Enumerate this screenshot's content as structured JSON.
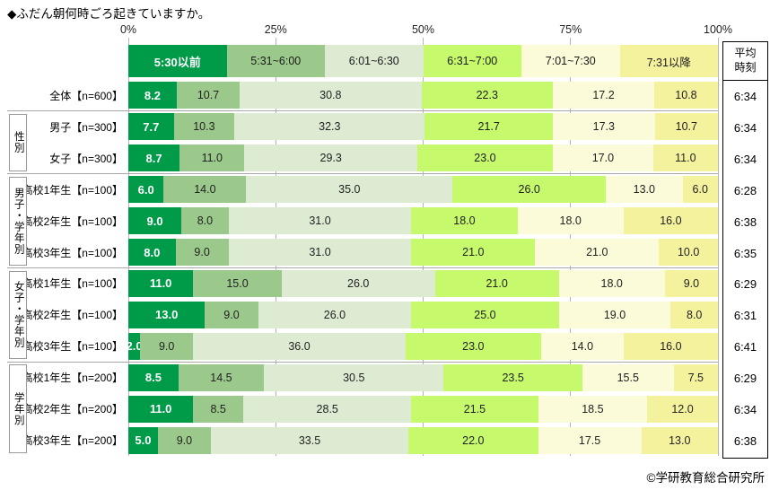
{
  "title": "◆ふだん朝何時ごろ起きていますか。",
  "footer": "©学研教育総合研究所",
  "avg_col": {
    "header": "平均\n時刻"
  },
  "chart_data": {
    "type": "bar",
    "stacked": true,
    "horizontal": true,
    "title": "ふだん朝何時ごろ起きていますか。",
    "x_ticks": [
      "0%",
      "25%",
      "50%",
      "75%",
      "100%"
    ],
    "xlim": [
      0,
      100
    ],
    "grid": true,
    "legend_position": "top",
    "categories": [
      "全体【n=600】",
      "男子【n=300】",
      "女子【n=300】",
      "高校1年生【n=100】",
      "高校2年生【n=100】",
      "高校3年生【n=100】",
      "高校1年生【n=100】",
      "高校2年生【n=100】",
      "高校3年生【n=100】",
      "高校1年生【n=200】",
      "高校2年生【n=200】",
      "高校3年生【n=200】"
    ],
    "groups": [
      {
        "label": "性別",
        "start": 1,
        "end": 2
      },
      {
        "label": "男子・学年別",
        "start": 3,
        "end": 5
      },
      {
        "label": "女子・学年別",
        "start": 6,
        "end": 8
      },
      {
        "label": "学年別",
        "start": 9,
        "end": 11
      }
    ],
    "series": [
      {
        "name": "5:30以前",
        "color": "#009b48",
        "text_color": "#ffffff",
        "values": [
          8.2,
          7.7,
          8.7,
          6.0,
          9.0,
          8.0,
          11.0,
          13.0,
          2.0,
          8.5,
          11.0,
          5.0
        ]
      },
      {
        "name": "5:31~6:00",
        "color": "#9bc98b",
        "text_color": "#222222",
        "values": [
          10.7,
          10.3,
          11.0,
          14.0,
          8.0,
          9.0,
          15.0,
          9.0,
          9.0,
          14.5,
          8.5,
          9.0
        ]
      },
      {
        "name": "6:01~6:30",
        "color": "#ddebd3",
        "text_color": "#222222",
        "values": [
          30.8,
          32.3,
          29.3,
          35.0,
          31.0,
          31.0,
          26.0,
          26.0,
          36.0,
          30.5,
          28.5,
          33.5
        ]
      },
      {
        "name": "6:31~7:00",
        "color": "#c6f96c",
        "text_color": "#222222",
        "values": [
          22.3,
          21.7,
          23.0,
          26.0,
          18.0,
          21.0,
          21.0,
          25.0,
          23.0,
          23.5,
          21.5,
          22.0
        ]
      },
      {
        "name": "7:01~7:30",
        "color": "#fcfbd9",
        "text_color": "#222222",
        "values": [
          17.2,
          17.3,
          17.0,
          13.0,
          18.0,
          21.0,
          18.0,
          19.0,
          14.0,
          15.5,
          18.5,
          17.5
        ]
      },
      {
        "name": "7:31以降",
        "color": "#f5f29e",
        "text_color": "#222222",
        "values": [
          10.8,
          10.7,
          11.0,
          6.0,
          16.0,
          10.0,
          9.0,
          8.0,
          16.0,
          7.5,
          12.0,
          13.0
        ]
      }
    ],
    "extra_column": {
      "header": "平均時刻",
      "values": [
        "6:34",
        "6:34",
        "6:34",
        "6:28",
        "6:38",
        "6:35",
        "6:29",
        "6:31",
        "6:41",
        "6:29",
        "6:34",
        "6:38"
      ]
    }
  }
}
